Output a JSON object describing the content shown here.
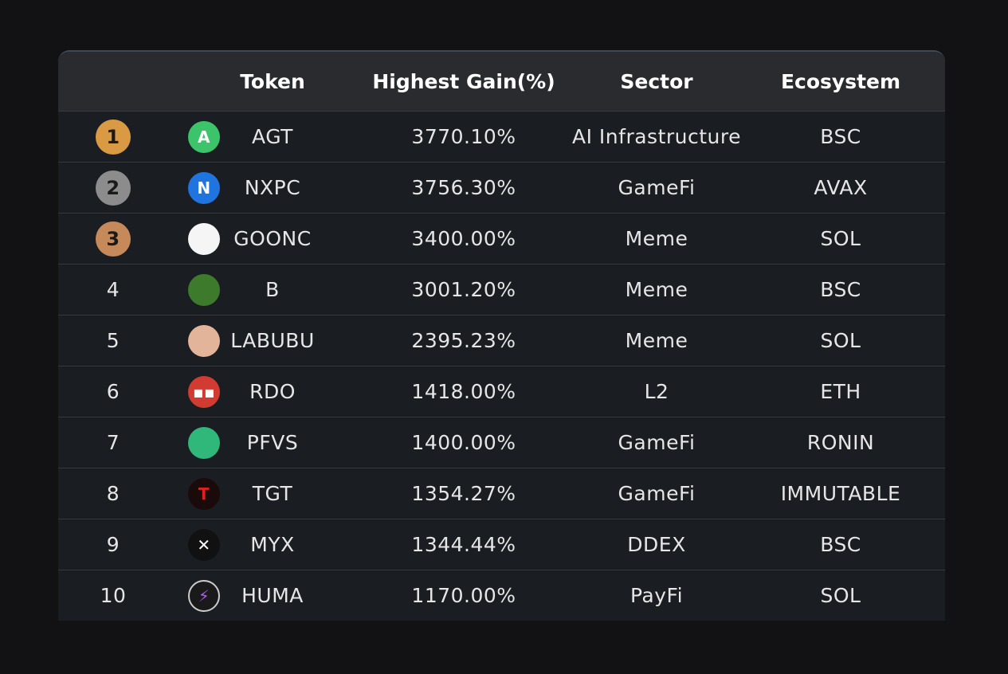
{
  "headers": {
    "rank": "",
    "token": "Token",
    "gain": "Highest Gain(%)",
    "sector": "Sector",
    "ecosystem": "Ecosystem"
  },
  "rows": [
    {
      "rank": "1",
      "token": "AGT",
      "gain": "3770.10%",
      "sector": "AI Infrastructure",
      "ecosystem": "BSC",
      "icon": "agt-logo-icon",
      "icon_color": "#3cc46a",
      "glyph": "A",
      "badge_color": "#d99a43"
    },
    {
      "rank": "2",
      "token": "NXPC",
      "gain": "3756.30%",
      "sector": "GameFi",
      "ecosystem": "AVAX",
      "icon": "nxpc-logo-icon",
      "icon_color": "#1f74e0",
      "glyph": "N",
      "badge_color": "#8c8c8c"
    },
    {
      "rank": "3",
      "token": "GOONC",
      "gain": "3400.00%",
      "sector": "Meme",
      "ecosystem": "SOL",
      "icon": "goonc-logo-icon",
      "icon_color": "#f5f5f5",
      "glyph": "",
      "badge_color": "#c68a5a"
    },
    {
      "rank": "4",
      "token": "B",
      "gain": "3001.20%",
      "sector": "Meme",
      "ecosystem": "BSC",
      "icon": "b-logo-icon",
      "icon_color": "#3d7a2c",
      "glyph": "",
      "badge_color": ""
    },
    {
      "rank": "5",
      "token": "LABUBU",
      "gain": "2395.23%",
      "sector": "Meme",
      "ecosystem": "SOL",
      "icon": "labubu-logo-icon",
      "icon_color": "#e2b49a",
      "glyph": "",
      "badge_color": ""
    },
    {
      "rank": "6",
      "token": "RDO",
      "gain": "1418.00%",
      "sector": "L2",
      "ecosystem": "ETH",
      "icon": "rdo-logo-icon",
      "icon_color": "#d13b31",
      "glyph": "▪▪",
      "badge_color": ""
    },
    {
      "rank": "7",
      "token": "PFVS",
      "gain": "1400.00%",
      "sector": "GameFi",
      "ecosystem": "RONIN",
      "icon": "pfvs-logo-icon",
      "icon_color": "#2fb87a",
      "glyph": "",
      "badge_color": ""
    },
    {
      "rank": "8",
      "token": "TGT",
      "gain": "1354.27%",
      "sector": "GameFi",
      "ecosystem": "IMMUTABLE",
      "icon": "tgt-logo-icon",
      "icon_color": "#1a0a0a",
      "glyph": "T",
      "badge_color": ""
    },
    {
      "rank": "9",
      "token": "MYX",
      "gain": "1344.44%",
      "sector": "DDEX",
      "ecosystem": "BSC",
      "icon": "myx-logo-icon",
      "icon_color": "#111",
      "glyph": "✕",
      "badge_color": ""
    },
    {
      "rank": "10",
      "token": "HUMA",
      "gain": "1170.00%",
      "sector": "PayFi",
      "ecosystem": "SOL",
      "icon": "huma-logo-icon",
      "icon_color": "#1a1a1a",
      "glyph": "⚡",
      "badge_color": ""
    }
  ]
}
